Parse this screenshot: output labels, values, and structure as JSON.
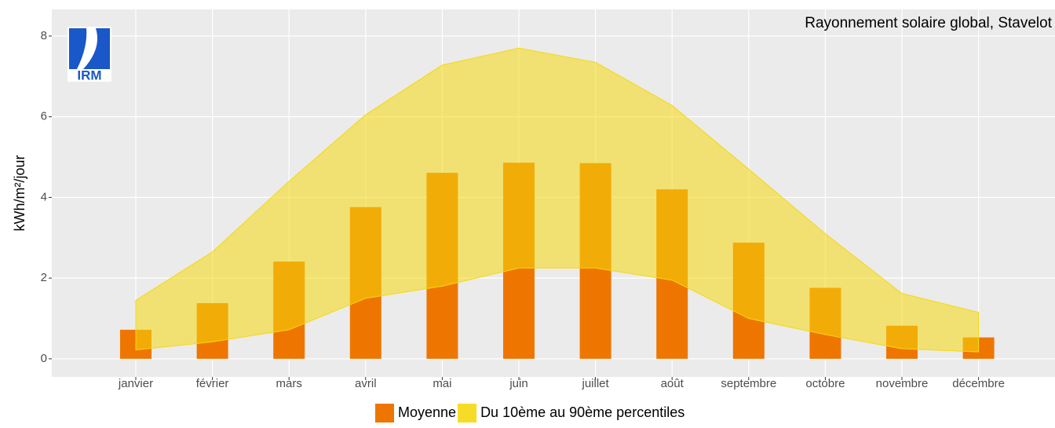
{
  "chart_data": {
    "type": "bar",
    "title": "Rayonnement solaire global, Stavelot",
    "logo": "IRM",
    "y_label": "kWh/m²/jour",
    "categories": [
      "janvier",
      "février",
      "mars",
      "avril",
      "mai",
      "juin",
      "juillet",
      "août",
      "septembre",
      "octobre",
      "novembre",
      "décembre"
    ],
    "series": [
      {
        "name": "Moyenne",
        "color": "#ee7600",
        "values": [
          0.72,
          1.38,
          2.41,
          3.76,
          4.61,
          4.86,
          4.85,
          4.2,
          2.88,
          1.76,
          0.82,
          0.53
        ]
      },
      {
        "name": "Du 10ème au 90ème percentiles",
        "type": "ribbon",
        "color": "#f5d80f",
        "low": [
          0.22,
          0.42,
          0.72,
          1.5,
          1.8,
          2.25,
          2.25,
          1.95,
          1.0,
          0.6,
          0.25,
          0.17
        ],
        "high": [
          1.45,
          2.65,
          4.4,
          6.05,
          7.28,
          7.7,
          7.35,
          6.28,
          4.7,
          3.1,
          1.62,
          1.15
        ]
      }
    ],
    "ylim": [
      -0.45,
      8.66
    ],
    "yticks": [
      0,
      2,
      4,
      6,
      8
    ],
    "grid": true,
    "legend": "bottom"
  }
}
